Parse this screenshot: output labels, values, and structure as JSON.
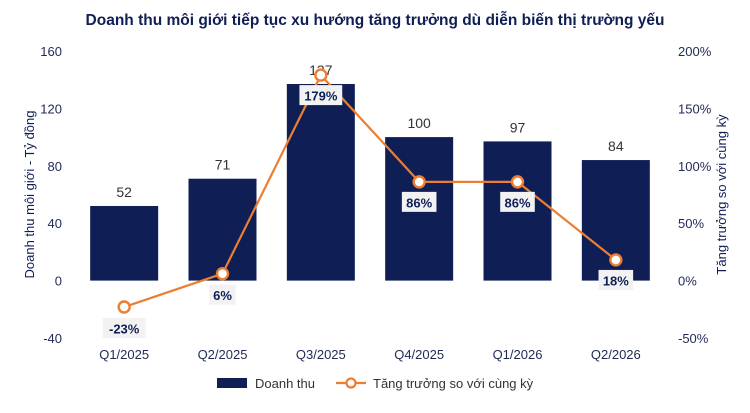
{
  "chart_data": {
    "type": "bar",
    "title": "Doanh thu môi giới tiếp tục xu hướng tăng trưởng dù diễn biến thị trường yếu",
    "categories": [
      "Q1/2025",
      "Q2/2025",
      "Q3/2025",
      "Q4/2025",
      "Q1/2026",
      "Q2/2026"
    ],
    "series": [
      {
        "name": "Doanh thu",
        "type": "bar",
        "axis": "left",
        "values": [
          52,
          71,
          137,
          100,
          97,
          84
        ],
        "labels": [
          "52",
          "71",
          "137",
          "100",
          "97",
          "84"
        ],
        "color": "#0f1f55"
      },
      {
        "name": "Tăng trưởng so với cùng kỳ",
        "type": "line",
        "axis": "right",
        "values": [
          -23,
          6,
          179,
          86,
          86,
          18
        ],
        "labels": [
          "-23%",
          "6%",
          "179%",
          "86%",
          "86%",
          "18%"
        ],
        "color": "#ed7d31"
      }
    ],
    "ylabel": "Doanh thu môi giới - Tỷ đồng",
    "ylim": [
      -40,
      160
    ],
    "yticks": [
      "-40",
      "0",
      "40",
      "80",
      "120",
      "160"
    ],
    "y2label": "Tăng trưởng so với cùng kỳ",
    "y2lim": [
      -50,
      200
    ],
    "y2ticks": [
      "-50%",
      "0%",
      "50%",
      "100%",
      "150%",
      "200%"
    ],
    "grid": false,
    "legend": "bottom-center"
  }
}
